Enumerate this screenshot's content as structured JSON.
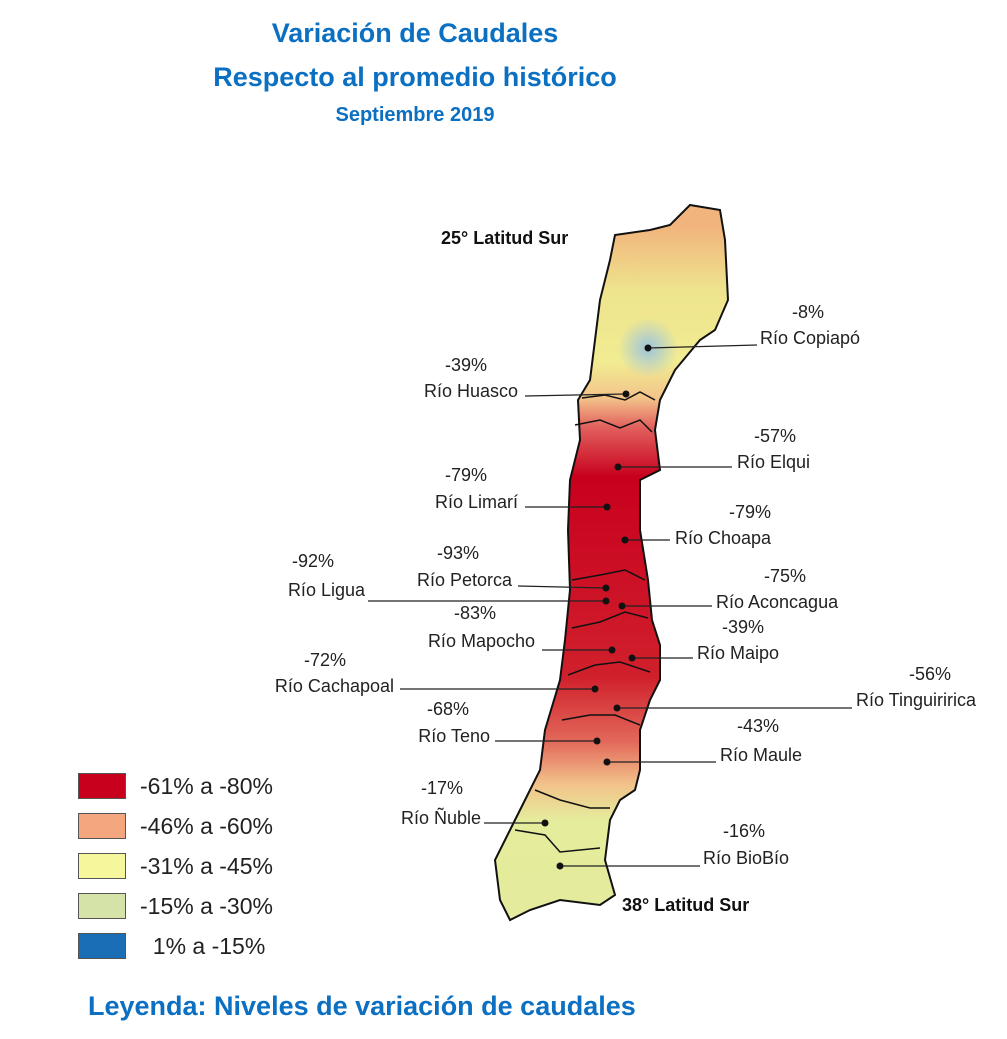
{
  "title": {
    "line1": "Variación de Caudales",
    "line2": "Respecto al promedio histórico",
    "line3": "Septiembre 2019"
  },
  "map": {
    "north_label": "25° Latitud Sur",
    "south_label": "38° Latitud Sur",
    "rivers": [
      {
        "name": "Río Copiapó",
        "value": "-8%"
      },
      {
        "name": "Río Huasco",
        "value": "-39%"
      },
      {
        "name": "Río Elqui",
        "value": "-57%"
      },
      {
        "name": "Río Limarí",
        "value": "-79%"
      },
      {
        "name": "Río Choapa",
        "value": "-79%"
      },
      {
        "name": "Río Petorca",
        "value": "-93%"
      },
      {
        "name": "Río Ligua",
        "value": "-92%"
      },
      {
        "name": "Río Aconcagua",
        "value": "-75%"
      },
      {
        "name": "Río Mapocho",
        "value": "-83%"
      },
      {
        "name": "Río Maipo",
        "value": "-39%"
      },
      {
        "name": "Río Cachapoal",
        "value": "-72%"
      },
      {
        "name": "Río Tinguiririca",
        "value": "-56%"
      },
      {
        "name": "Río Teno",
        "value": "-68%"
      },
      {
        "name": "Río Maule",
        "value": "-43%"
      },
      {
        "name": "Río Ñuble",
        "value": "-17%"
      },
      {
        "name": "Río BioBío",
        "value": "-16%"
      }
    ]
  },
  "legend": {
    "items": [
      {
        "label": "-61% a -80%",
        "color": "#c8001e"
      },
      {
        "label": "-46% a -60%",
        "color": "#f4a67e"
      },
      {
        "label": "-31% a -45%",
        "color": "#f6f69c"
      },
      {
        "label": "-15% a -30%",
        "color": "#d5e3a8"
      },
      {
        "label": "  1% a -15%",
        "color": "#1a6eb5"
      }
    ],
    "caption": "Leyenda: Niveles de variación de caudales"
  },
  "colors": {
    "title": "#0b6fc2"
  }
}
